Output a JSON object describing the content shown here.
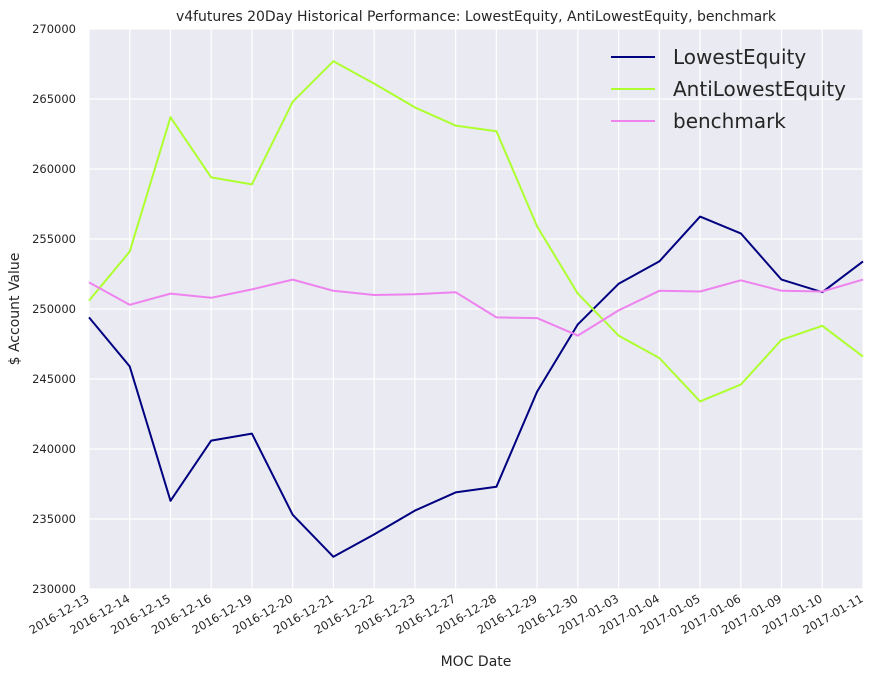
{
  "chart_data": {
    "type": "line",
    "title": "v4futures 20Day Historical Performance: LowestEquity, AntiLowestEquity, benchmark",
    "xlabel": "MOC Date",
    "ylabel": "$ Account Value",
    "ylim": [
      230000,
      270000
    ],
    "y_ticks": [
      230000,
      235000,
      240000,
      245000,
      250000,
      255000,
      260000,
      265000,
      270000
    ],
    "grid": true,
    "legend_position": "top-right",
    "x": [
      "2016-12-13",
      "2016-12-14",
      "2016-12-15",
      "2016-12-16",
      "2016-12-19",
      "2016-12-20",
      "2016-12-21",
      "2016-12-22",
      "2016-12-23",
      "2016-12-27",
      "2016-12-28",
      "2016-12-29",
      "2016-12-30",
      "2017-01-03",
      "2017-01-04",
      "2017-01-05",
      "2017-01-06",
      "2017-01-09",
      "2017-01-10",
      "2017-01-11"
    ],
    "series": [
      {
        "name": "LowestEquity",
        "color": "#000080",
        "values": [
          249400,
          245900,
          236300,
          240600,
          241100,
          235300,
          232300,
          233900,
          235600,
          236900,
          237300,
          244100,
          248900,
          251800,
          253400,
          256600,
          255400,
          252100,
          251200,
          253400
        ]
      },
      {
        "name": "AntiLowestEquity",
        "color": "#adff2f",
        "values": [
          250600,
          254100,
          263700,
          259400,
          258900,
          264800,
          267700,
          266100,
          264400,
          263100,
          262700,
          255900,
          251100,
          248100,
          246500,
          243400,
          244600,
          247800,
          248800,
          246600
        ]
      },
      {
        "name": "benchmark",
        "color": "#ee82ee",
        "values": [
          251900,
          250300,
          251100,
          250800,
          251400,
          252100,
          251300,
          251000,
          251050,
          251200,
          249400,
          249350,
          248100,
          249900,
          251300,
          251250,
          252050,
          251300,
          251250,
          252100
        ]
      }
    ]
  }
}
